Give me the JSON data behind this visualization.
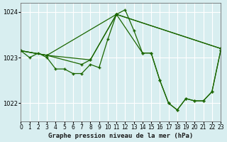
{
  "title": "Graphe pression niveau de la mer (hPa)",
  "bg_color": "#d8eef0",
  "grid_color": "#ffffff",
  "line_color": "#1a6600",
  "marker_color": "#1a6600",
  "xlim": [
    0,
    23
  ],
  "ylim": [
    1021.6,
    1024.2
  ],
  "yticks": [
    1022,
    1023,
    1024
  ],
  "xticks": [
    0,
    1,
    2,
    3,
    4,
    5,
    6,
    7,
    8,
    9,
    10,
    11,
    12,
    13,
    14,
    15,
    16,
    17,
    18,
    19,
    20,
    21,
    22,
    23
  ],
  "series": [
    {
      "x": [
        0,
        1,
        2,
        3,
        4,
        5,
        6,
        7,
        8,
        9,
        10,
        11,
        12,
        13,
        14,
        15,
        16,
        17,
        18,
        19,
        20,
        21,
        22,
        23
      ],
      "y": [
        1023.1,
        1023.0,
        1023.1,
        1023.1,
        1022.75,
        1022.75,
        1022.65,
        1022.65,
        1022.85,
        null,
        null,
        null,
        null,
        null,
        null,
        1023.1,
        1022.45,
        1022.0,
        1021.85,
        1022.1,
        1022.1,
        1022.05,
        1022.25,
        1023.15
      ]
    },
    {
      "x": [
        0,
        1,
        2,
        3,
        4,
        5,
        6,
        7,
        8,
        9,
        10,
        11,
        12,
        13,
        14,
        15,
        16,
        17,
        18,
        19,
        20,
        21,
        22,
        23
      ],
      "y": [
        1023.1,
        null,
        null,
        1023.1,
        null,
        null,
        null,
        null,
        null,
        null,
        null,
        1023.95,
        null,
        null,
        null,
        null,
        null,
        null,
        null,
        null,
        null,
        null,
        null,
        1023.15
      ]
    },
    {
      "x": [
        0,
        3,
        11,
        23
      ],
      "y": [
        1023.1,
        1023.1,
        1023.95,
        1023.15
      ]
    },
    {
      "x": [
        0,
        1,
        2,
        3,
        4,
        5,
        6,
        7,
        8,
        9,
        10,
        11,
        12,
        13,
        14,
        15,
        16,
        17,
        18,
        19,
        20,
        21,
        22,
        23
      ],
      "y": [
        1023.1,
        null,
        null,
        1023.05,
        null,
        null,
        null,
        1022.85,
        1022.95,
        null,
        null,
        1023.95,
        null,
        null,
        null,
        null,
        null,
        null,
        null,
        null,
        null,
        null,
        null,
        null
      ]
    }
  ],
  "line1_x": [
    0,
    1,
    2,
    3,
    4,
    5,
    6,
    7,
    8,
    9,
    10,
    11,
    12,
    13,
    14,
    15,
    16,
    17,
    18,
    19,
    20,
    21,
    22,
    23
  ],
  "line1_y": [
    1023.15,
    1023.0,
    1023.1,
    1023.0,
    1022.75,
    1022.75,
    1022.65,
    1022.65,
    1022.85,
    1022.78,
    1023.4,
    1023.95,
    1024.05,
    1023.6,
    1023.1,
    1023.1,
    1022.5,
    1022.0,
    1021.85,
    1022.1,
    1022.05,
    1022.05,
    1022.25,
    1023.15
  ],
  "line2_x": [
    0,
    3,
    11,
    23
  ],
  "line2_y": [
    1023.15,
    1023.05,
    1023.95,
    1023.2
  ],
  "line3_x": [
    0,
    3,
    7,
    8,
    11,
    23
  ],
  "line3_y": [
    1023.15,
    1023.05,
    1022.85,
    1022.95,
    1023.95,
    1023.2
  ],
  "line4_x": [
    0,
    3,
    8,
    11,
    14,
    15,
    16,
    17,
    18,
    19,
    20,
    21,
    22,
    23
  ],
  "line4_y": [
    1023.15,
    1023.05,
    1022.95,
    1023.95,
    1023.1,
    1023.1,
    1022.5,
    1022.0,
    1021.85,
    1022.1,
    1022.05,
    1022.05,
    1022.25,
    1023.15
  ]
}
